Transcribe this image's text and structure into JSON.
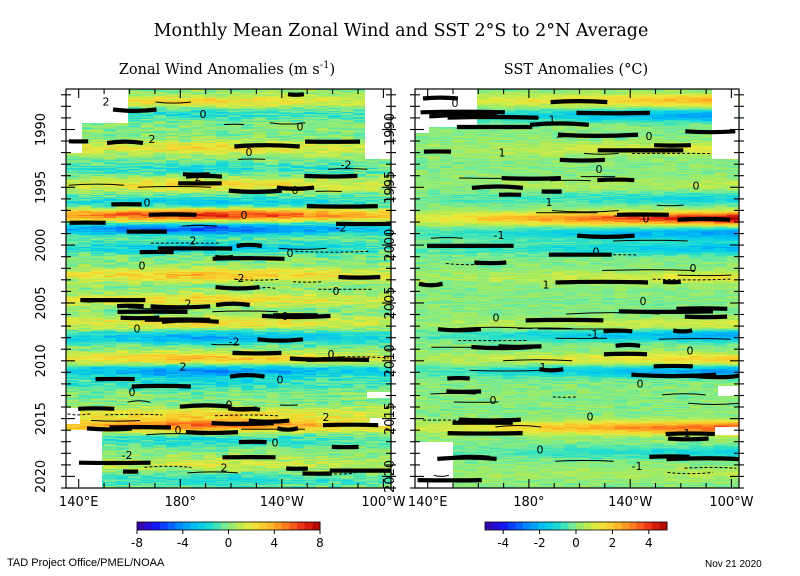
{
  "figure": {
    "title": "Monthly Mean Zonal Wind and SST  2°S to 2°N Average",
    "credit": "TAD Project Office/PMEL/NOAA",
    "date": "Nov 21 2020"
  },
  "chart_data": [
    {
      "type": "heatmap",
      "title": "Zonal Wind Anomalies (m s",
      "title_sup": "-1",
      "title_end": ")",
      "x_ticks": [
        "140°E",
        "180°",
        "140°W",
        "100°W"
      ],
      "y_ticks": [
        "1990",
        "1995",
        "2000",
        "2005",
        "2010",
        "2015",
        "2020"
      ],
      "y_range": [
        1986.5,
        2021.0
      ],
      "x_range_deg_east": [
        135,
        263
      ],
      "contour_labels": [
        "2",
        "0",
        "0",
        "2",
        "0",
        "-2",
        "2",
        "0",
        "0",
        "0",
        "-2",
        "2",
        "0",
        "0",
        "-2",
        "0",
        "2",
        "0",
        "0",
        "-2",
        "0",
        "2",
        "0",
        "0",
        "0",
        "2",
        "0",
        "0",
        "-2",
        "2"
      ],
      "colorbar": {
        "ticks": [
          "-8",
          "-4",
          "0",
          "4",
          "8"
        ],
        "min": -8,
        "max": 8
      },
      "events": [
        {
          "year": 1987.6,
          "value": 3
        },
        {
          "year": 1988.6,
          "value": -2
        },
        {
          "year": 1991.6,
          "value": 3
        },
        {
          "year": 1993.4,
          "value": -2
        },
        {
          "year": 1994.8,
          "value": 3
        },
        {
          "year": 1996.3,
          "value": -3
        },
        {
          "year": 1997.4,
          "value": 8
        },
        {
          "year": 1998.6,
          "value": -6
        },
        {
          "year": 2000.2,
          "value": -3
        },
        {
          "year": 2002.6,
          "value": 4
        },
        {
          "year": 2004.7,
          "value": 3
        },
        {
          "year": 2006.7,
          "value": 3
        },
        {
          "year": 2008.0,
          "value": -4
        },
        {
          "year": 2009.8,
          "value": 4
        },
        {
          "year": 2010.9,
          "value": -5
        },
        {
          "year": 2012.0,
          "value": -2
        },
        {
          "year": 2014.6,
          "value": 3
        },
        {
          "year": 2015.6,
          "value": 6
        },
        {
          "year": 2016.9,
          "value": -2
        },
        {
          "year": 2018.9,
          "value": 2
        },
        {
          "year": 2020.3,
          "value": -2
        }
      ]
    },
    {
      "type": "heatmap",
      "title": "SST Anomalies (°C)",
      "x_ticks": [
        "140°E",
        "180°",
        "140°W",
        "100°W"
      ],
      "y_ticks": [
        "1990",
        "1995",
        "2000",
        "2005",
        "2010",
        "2015",
        "2020"
      ],
      "y_range": [
        1986.5,
        2021.0
      ],
      "x_range_deg_east": [
        135,
        263
      ],
      "contour_labels": [
        "0",
        "1",
        "0",
        "1",
        "0",
        "0",
        "1",
        "0",
        "-1",
        "0",
        "0",
        "1",
        "0",
        "0",
        "-1",
        "0",
        "1",
        "0",
        "0",
        "0",
        "1",
        "0",
        "-1"
      ],
      "colorbar": {
        "ticks": [
          "-4",
          "-2",
          "0",
          "2",
          "4"
        ],
        "min": -5,
        "max": 5
      },
      "events": [
        {
          "year": 1987.5,
          "value": 2
        },
        {
          "year": 1988.8,
          "value": -2
        },
        {
          "year": 1991.7,
          "value": 1
        },
        {
          "year": 1994.7,
          "value": 0.5
        },
        {
          "year": 1996.0,
          "value": -1
        },
        {
          "year": 1997.7,
          "value": 4
        },
        {
          "year": 1999.0,
          "value": -2
        },
        {
          "year": 2000.3,
          "value": -1.5
        },
        {
          "year": 2002.8,
          "value": 1
        },
        {
          "year": 2006.9,
          "value": 1
        },
        {
          "year": 2007.8,
          "value": -2
        },
        {
          "year": 2009.9,
          "value": 1.5
        },
        {
          "year": 2010.9,
          "value": -2
        },
        {
          "year": 2015.8,
          "value": 3
        },
        {
          "year": 2017.9,
          "value": -1
        },
        {
          "year": 2019.8,
          "value": 0.5
        }
      ]
    }
  ]
}
